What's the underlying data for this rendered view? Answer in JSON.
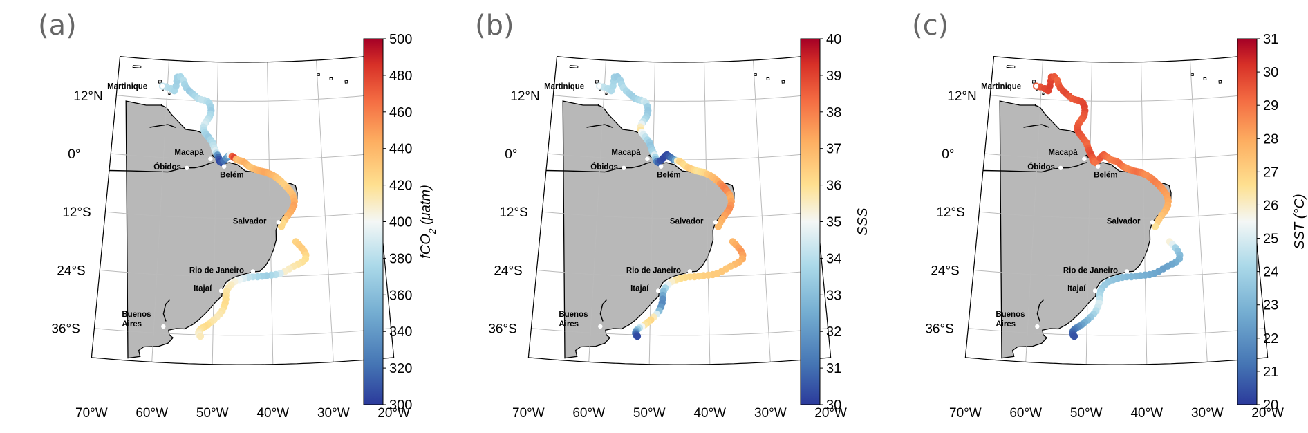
{
  "panels": [
    {
      "letter": "(a)",
      "colorbar": {
        "title": "fCO2 (μatm)",
        "title_main": "fCO",
        "title_sub": "2",
        "title_unit": " (μatm)",
        "min": 300,
        "max": 500,
        "ticks": [
          "500",
          "480",
          "460",
          "440",
          "420",
          "400",
          "380",
          "360",
          "340",
          "320",
          "300"
        ]
      },
      "track_values": [
        385,
        380,
        378,
        376,
        372,
        370,
        368,
        372,
        376,
        380,
        374,
        372,
        370,
        368,
        372,
        376,
        380,
        384,
        388,
        384,
        380,
        376,
        372,
        368,
        372,
        376,
        378,
        382,
        386,
        390,
        388,
        384,
        380,
        376,
        372,
        368,
        370,
        374,
        378,
        382,
        386,
        392,
        398,
        380,
        340,
        320,
        310,
        305,
        305,
        310,
        320,
        335,
        350,
        400,
        470,
        490,
        480,
        440,
        435,
        438,
        440,
        442,
        444,
        440,
        436,
        432,
        434,
        436,
        438,
        440,
        442,
        444,
        446,
        448,
        446,
        444,
        442,
        440,
        438,
        436,
        434,
        432,
        430,
        428,
        428,
        430,
        432,
        434,
        436,
        440,
        444,
        446,
        448,
        446,
        444,
        440,
        432,
        420,
        422,
        424,
        426,
        428,
        430,
        428,
        426,
        424,
        420,
        418,
        416,
        414,
        412,
        410,
        408,
        390,
        380,
        376,
        372,
        370,
        372,
        376,
        380,
        384,
        388,
        392,
        398,
        405,
        410,
        412,
        414,
        416,
        418,
        420,
        422,
        420,
        418,
        416,
        414,
        412,
        414,
        416,
        418,
        420,
        422,
        420,
        418,
        416,
        414,
        412,
        410,
        408,
        406,
        412,
        418
      ]
    },
    {
      "letter": "(b)",
      "colorbar": {
        "title": "SSS",
        "title_main": "SSS",
        "title_sub": "",
        "title_unit": "",
        "min": 30,
        "max": 40,
        "ticks": [
          "40",
          "39",
          "38",
          "37",
          "36",
          "35",
          "34",
          "33",
          "32",
          "31",
          "30"
        ]
      },
      "track_values": [
        34.6,
        34.2,
        34.0,
        33.9,
        33.8,
        33.7,
        33.5,
        33.4,
        33.6,
        33.8,
        34.2,
        34.0,
        33.8,
        33.6,
        33.5,
        33.6,
        33.8,
        34.0,
        34.4,
        34.2,
        33.8,
        33.5,
        33.3,
        33.4,
        33.6,
        33.8,
        34.2,
        34.8,
        35.5,
        35.8,
        35.4,
        35.0,
        34.6,
        34.2,
        33.8,
        33.4,
        33.2,
        33.4,
        33.6,
        33.8,
        34.2,
        34.6,
        33.8,
        33.0,
        31.5,
        30.8,
        30.4,
        30.2,
        30.2,
        30.3,
        30.4,
        30.6,
        31.0,
        31.5,
        32.5,
        35.5,
        36.2,
        36.3,
        36.1,
        36.0,
        36.2,
        36.4,
        36.5,
        36.4,
        36.2,
        36.0,
        35.9,
        36.0,
        36.1,
        36.2,
        36.4,
        36.5,
        36.6,
        36.8,
        36.9,
        37.0,
        37.2,
        37.6,
        37.9,
        38.0,
        37.8,
        37.6,
        37.4,
        37.2,
        37.4,
        37.6,
        37.8,
        37.6,
        37.4,
        37.2,
        37.0,
        36.8,
        36.9,
        37.0,
        37.2,
        37.4,
        37.6,
        37.4,
        37.2,
        37.0,
        36.9,
        36.8,
        36.7,
        36.6,
        36.6,
        36.5,
        36.5,
        36.4,
        36.4,
        36.3,
        36.3,
        36.2,
        36.2,
        36.1,
        36.0,
        35.8,
        35.4,
        34.8,
        33.8,
        33.0,
        32.4,
        32.0,
        31.8,
        31.6,
        32.0,
        33.0,
        34.5,
        35.6,
        36.2,
        36.0,
        35.8,
        35.6,
        35.0,
        34.2,
        33.4,
        32.6,
        31.8,
        31.2,
        30.8,
        30.5,
        30.3,
        30.2
      ]
    },
    {
      "letter": "(c)",
      "colorbar": {
        "title": "SST (°C)",
        "title_main": "SST",
        "title_sub": "",
        "title_unit": " (°C)",
        "min": 20,
        "max": 31,
        "ticks": [
          "31",
          "30",
          "29",
          "28",
          "27",
          "26",
          "25",
          "24",
          "23",
          "22",
          "21",
          "20"
        ]
      },
      "track_values": [
        29.4,
        29.6,
        29.8,
        29.9,
        30.0,
        29.9,
        29.7,
        29.5,
        29.3,
        29.4,
        29.6,
        29.7,
        29.8,
        29.6,
        29.4,
        29.5,
        29.6,
        29.7,
        29.8,
        29.9,
        29.8,
        29.6,
        29.5,
        29.4,
        29.3,
        29.4,
        29.5,
        29.6,
        29.7,
        29.6,
        29.5,
        29.4,
        29.3,
        29.2,
        29.4,
        29.6,
        29.7,
        29.8,
        29.6,
        29.4,
        29.2,
        29.0,
        29.1,
        29.3,
        29.5,
        29.6,
        29.4,
        29.2,
        29.0,
        28.8,
        28.8,
        28.9,
        29.0,
        29.1,
        29.2,
        29.0,
        28.8,
        28.6,
        28.6,
        28.7,
        28.9,
        29.0,
        29.1,
        29.0,
        28.8,
        28.6,
        28.5,
        28.5,
        28.6,
        28.7,
        28.8,
        28.7,
        28.6,
        28.4,
        28.3,
        28.2,
        28.1,
        28.0,
        27.9,
        27.8,
        27.6,
        27.4,
        27.2,
        27.0,
        26.5,
        25.8,
        25.2,
        24.6,
        24.0,
        23.5,
        23.2,
        23.0,
        22.8,
        22.6,
        22.5,
        22.4,
        22.5,
        22.6,
        22.7,
        22.8,
        22.9,
        23.0,
        23.1,
        23.2,
        23.3,
        23.4,
        23.5,
        23.6,
        23.7,
        23.8,
        24.0,
        24.2,
        24.6,
        25.0,
        24.8,
        24.4,
        24.0,
        23.6,
        23.2,
        22.8,
        22.4,
        22.0,
        21.7,
        21.4,
        21.2,
        21.0,
        20.8,
        20.7,
        20.6,
        20.5,
        20.4
      ]
    }
  ],
  "map": {
    "lon_labels": [
      "70°W",
      "60°W",
      "50°W",
      "40°W",
      "30°W",
      "20°W"
    ],
    "lat_labels": [
      "12°N",
      "0°",
      "12°S",
      "24°S",
      "36°S"
    ],
    "cities": [
      {
        "name": "Martinique"
      },
      {
        "name": "Macapá"
      },
      {
        "name": "Óbidos"
      },
      {
        "name": "Belém"
      },
      {
        "name": "Salvador"
      },
      {
        "name": "Rio de Janeiro"
      },
      {
        "name": "Itajaí"
      },
      {
        "name": "Buenos"
      },
      {
        "name": "Aires"
      }
    ]
  },
  "colors": {
    "land": "#b8b8b8",
    "grid": "#bbbbbb",
    "colormap": [
      "#2b3a9b",
      "#4575b4",
      "#74add1",
      "#abd9e9",
      "#e0f3f8",
      "#fee090",
      "#fdae61",
      "#f46d43",
      "#d73027",
      "#a50026"
    ]
  }
}
